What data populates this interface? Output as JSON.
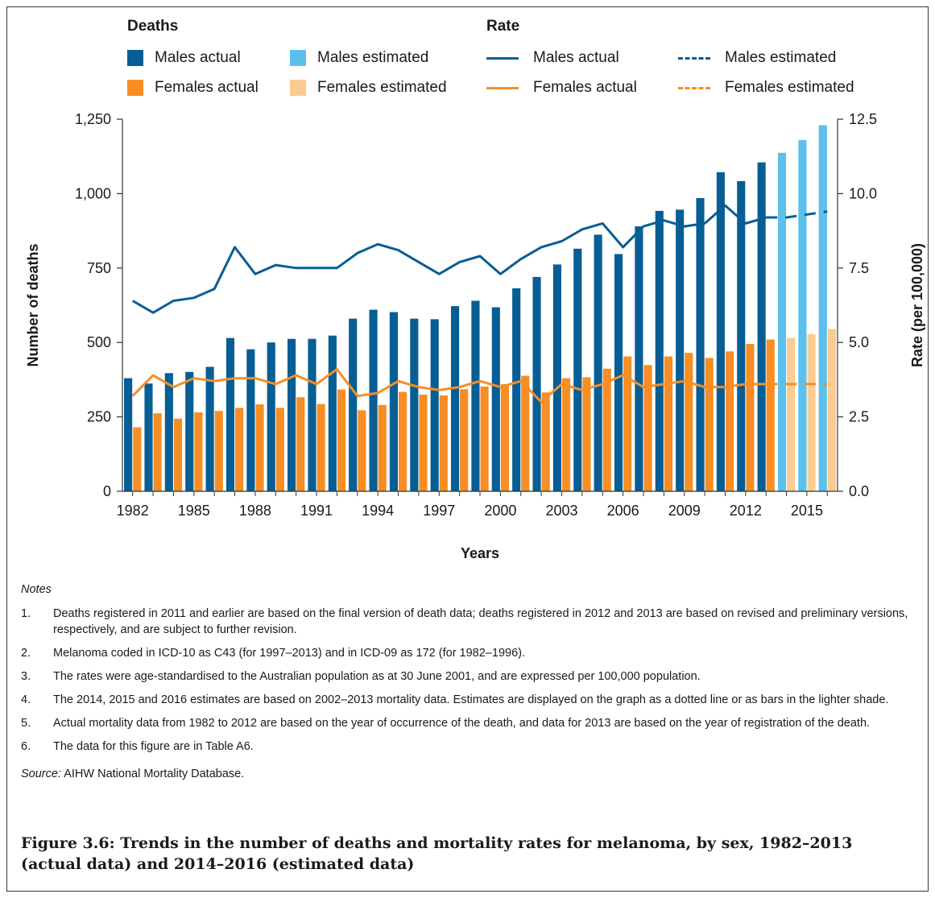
{
  "legend": {
    "deaths_heading": "Deaths",
    "rate_heading": "Rate",
    "items": [
      {
        "label": "Males actual",
        "color": "#075e94",
        "kind": "bar"
      },
      {
        "label": "Males estimated",
        "color": "#5bc0eb",
        "kind": "bar"
      },
      {
        "label": "Males actual",
        "color": "#075e94",
        "kind": "line"
      },
      {
        "label": "Males estimated",
        "color": "#075e94",
        "kind": "dash"
      },
      {
        "label": "Females actual",
        "color": "#f68e25",
        "kind": "bar"
      },
      {
        "label": "Females estimated",
        "color": "#fbcb91",
        "kind": "bar"
      },
      {
        "label": "Females actual",
        "color": "#f68e25",
        "kind": "line"
      },
      {
        "label": "Females estimated",
        "color": "#f68e25",
        "kind": "dash"
      }
    ]
  },
  "chart_data": {
    "type": "bar",
    "xlabel": "Years",
    "ylabel": "Number of deaths",
    "y2label": "Rate (per 100,000)",
    "ylim": [
      0,
      1250
    ],
    "y2lim": [
      0,
      12.5
    ],
    "yticks": [
      "0",
      "250",
      "500",
      "750",
      "1,000",
      "1,250"
    ],
    "y2ticks": [
      "0.0",
      "2.5",
      "5.0",
      "7.5",
      "10.0",
      "12.5"
    ],
    "xticks": [
      "1982",
      "1985",
      "1988",
      "1991",
      "1994",
      "1997",
      "2000",
      "2003",
      "2006",
      "2009",
      "2012",
      "2015"
    ],
    "years": [
      1982,
      1983,
      1984,
      1985,
      1986,
      1987,
      1988,
      1989,
      1990,
      1991,
      1992,
      1993,
      1994,
      1995,
      1996,
      1997,
      1998,
      1999,
      2000,
      2001,
      2002,
      2003,
      2004,
      2005,
      2006,
      2007,
      2008,
      2009,
      2010,
      2011,
      2012,
      2013,
      2014,
      2015,
      2016
    ],
    "series": [
      {
        "name": "Males actual",
        "kind": "bar",
        "color": "#075e94",
        "values": [
          380,
          362,
          397,
          401,
          418,
          515,
          477,
          500,
          512,
          512,
          523,
          580,
          610,
          602,
          580,
          578,
          622,
          640,
          618,
          682,
          720,
          762,
          815,
          862,
          797,
          890,
          942,
          946,
          985,
          1072,
          1042,
          1105,
          null,
          null,
          null
        ]
      },
      {
        "name": "Females actual",
        "kind": "bar",
        "color": "#f68e25",
        "values": [
          215,
          262,
          244,
          265,
          270,
          280,
          292,
          280,
          316,
          293,
          342,
          272,
          290,
          334,
          325,
          322,
          343,
          352,
          360,
          388,
          332,
          380,
          383,
          412,
          453,
          424,
          453,
          465,
          448,
          470,
          495,
          510,
          null,
          null,
          null
        ]
      },
      {
        "name": "Males estimated",
        "kind": "bar",
        "color": "#5bc0eb",
        "values": [
          null,
          null,
          null,
          null,
          null,
          null,
          null,
          null,
          null,
          null,
          null,
          null,
          null,
          null,
          null,
          null,
          null,
          null,
          null,
          null,
          null,
          null,
          null,
          null,
          null,
          null,
          null,
          null,
          null,
          null,
          null,
          null,
          1137,
          1180,
          1230
        ]
      },
      {
        "name": "Females estimated",
        "kind": "bar",
        "color": "#fbcb91",
        "values": [
          null,
          null,
          null,
          null,
          null,
          null,
          null,
          null,
          null,
          null,
          null,
          null,
          null,
          null,
          null,
          null,
          null,
          null,
          null,
          null,
          null,
          null,
          null,
          null,
          null,
          null,
          null,
          null,
          null,
          null,
          null,
          null,
          515,
          528,
          545
        ]
      },
      {
        "name": "Males actual",
        "kind": "line",
        "axis": "right",
        "color": "#075e94",
        "values": [
          6.4,
          6.0,
          6.4,
          6.5,
          6.8,
          8.2,
          7.3,
          7.6,
          7.5,
          7.5,
          7.5,
          8.0,
          8.3,
          8.1,
          7.7,
          7.3,
          7.7,
          7.9,
          7.3,
          7.8,
          8.2,
          8.4,
          8.8,
          9.0,
          8.2,
          8.9,
          9.1,
          8.9,
          9.0,
          9.6,
          9.0,
          9.2,
          null,
          null,
          null
        ]
      },
      {
        "name": "Males estimated",
        "kind": "dash",
        "axis": "right",
        "color": "#075e94",
        "values": [
          null,
          null,
          null,
          null,
          null,
          null,
          null,
          null,
          null,
          null,
          null,
          null,
          null,
          null,
          null,
          null,
          null,
          null,
          null,
          null,
          null,
          null,
          null,
          null,
          null,
          null,
          null,
          null,
          null,
          null,
          null,
          9.2,
          9.2,
          9.3,
          9.4
        ]
      },
      {
        "name": "Females actual",
        "kind": "line",
        "axis": "right",
        "color": "#f68e25",
        "values": [
          3.2,
          3.9,
          3.5,
          3.8,
          3.7,
          3.8,
          3.8,
          3.6,
          3.9,
          3.6,
          4.1,
          3.2,
          3.3,
          3.7,
          3.5,
          3.4,
          3.5,
          3.7,
          3.5,
          3.7,
          3.0,
          3.6,
          3.4,
          3.6,
          3.9,
          3.5,
          3.6,
          3.7,
          3.5,
          3.5,
          3.6,
          3.6,
          null,
          null,
          null
        ]
      },
      {
        "name": "Females estimated",
        "kind": "dash",
        "axis": "right",
        "color": "#f68e25",
        "values": [
          null,
          null,
          null,
          null,
          null,
          null,
          null,
          null,
          null,
          null,
          null,
          null,
          null,
          null,
          null,
          null,
          null,
          null,
          null,
          null,
          null,
          null,
          null,
          null,
          null,
          null,
          null,
          null,
          null,
          null,
          null,
          3.6,
          3.6,
          3.6,
          3.6
        ]
      }
    ]
  },
  "notes": {
    "title": "Notes",
    "items": [
      {
        "num": "1.",
        "text": "Deaths registered in 2011 and earlier are based on the final version of death data; deaths registered in 2012 and 2013 are based on revised and preliminary versions, respectively, and are subject to further revision."
      },
      {
        "num": "2.",
        "text": "Melanoma coded in ICD-10 as C43 (for 1997–2013) and in ICD-09 as 172 (for 1982–1996)."
      },
      {
        "num": "3.",
        "text": "The rates were age-standardised to the Australian population as at 30 June 2001, and are expressed per 100,000 population."
      },
      {
        "num": "4.",
        "text": "The 2014, 2015 and 2016 estimates are based on 2002–2013 mortality data. Estimates are displayed on the graph as a dotted line or as bars in the lighter shade."
      },
      {
        "num": "5.",
        "text": "Actual mortality data from 1982 to 2012 are based on the year of occurrence of the death, and data for 2013 are based on the year of registration of the death."
      },
      {
        "num": "6.",
        "text": "The data for this figure are in Table A6."
      }
    ],
    "source_label": "Source:",
    "source_text": " AIHW National Mortality Database."
  },
  "caption": "Figure 3.6: Trends in the number of deaths and mortality rates for melanoma, by sex, 1982–2013 (actual data) and 2014–2016 (estimated data)"
}
